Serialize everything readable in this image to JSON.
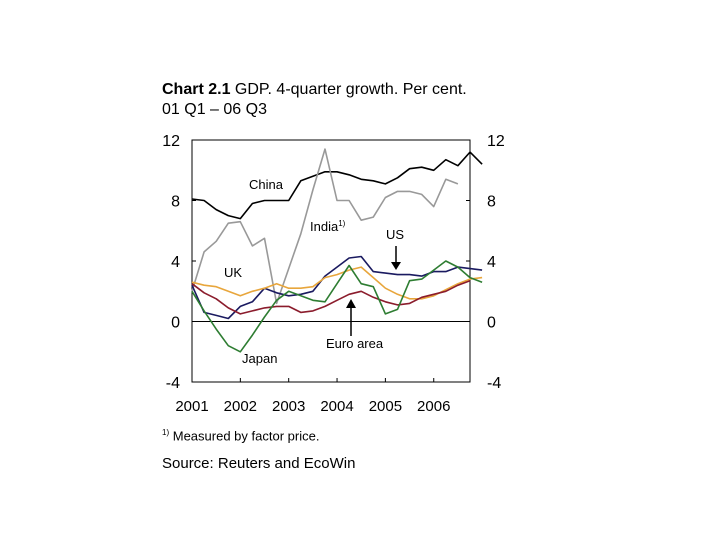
{
  "title": {
    "number": "Chart 2.1",
    "text": "GDP. 4-quarter growth. Per cent.",
    "subtitle": "01 Q1 –  06 Q3"
  },
  "footnote": {
    "marker": "1)",
    "text": "Measured by factor price."
  },
  "source": "Source: Reuters and EcoWin",
  "chart_data": {
    "type": "line",
    "x_start": 2001.0,
    "x_step": 0.25,
    "xlim": [
      2001.0,
      2006.75
    ],
    "ylim": [
      -4,
      12
    ],
    "yticks": [
      -4,
      0,
      4,
      8,
      12
    ],
    "xtick_labels": [
      "2001",
      "2002",
      "2003",
      "2004",
      "2005",
      "2006"
    ],
    "grid": false,
    "zero_line": true,
    "annotations": [
      {
        "series": "China",
        "label": "China"
      },
      {
        "series": "India",
        "label": "India",
        "sup": "1)"
      },
      {
        "series": "US",
        "label": "US",
        "arrow": true
      },
      {
        "series": "UK",
        "label": "UK"
      },
      {
        "series": "Euro area",
        "label": "Euro area",
        "arrow": true
      },
      {
        "series": "Japan",
        "label": "Japan"
      }
    ],
    "series": [
      {
        "name": "China",
        "color": "#000000",
        "x0": 2001.0,
        "values": [
          8.1,
          8.0,
          7.4,
          7.0,
          6.8,
          7.8,
          8.0,
          8.0,
          8.0,
          9.3,
          9.6,
          9.9,
          9.9,
          9.7,
          9.4,
          9.3,
          9.1,
          9.5,
          10.1,
          10.2,
          10.0,
          10.7,
          10.3,
          11.2,
          10.4
        ]
      },
      {
        "name": "India",
        "color": "#999999",
        "x0": 2001.0,
        "values": [
          2.0,
          4.6,
          5.3,
          6.5,
          6.6,
          5.0,
          5.5,
          1.2,
          3.5,
          5.8,
          8.7,
          11.4,
          8.0,
          8.0,
          6.7,
          6.9,
          8.2,
          8.6,
          8.6,
          8.4,
          7.6,
          9.4,
          9.1
        ]
      },
      {
        "name": "US",
        "color": "#1a1a60",
        "x0": 2001.0,
        "values": [
          2.4,
          0.6,
          0.4,
          0.2,
          1.0,
          1.3,
          2.2,
          1.9,
          1.7,
          1.8,
          2.0,
          3.0,
          3.6,
          4.2,
          4.3,
          3.3,
          3.2,
          3.1,
          3.1,
          3.0,
          3.3,
          3.3,
          3.6,
          3.5,
          3.4
        ]
      },
      {
        "name": "UK",
        "color": "#e8a63c",
        "x0": 2001.0,
        "values": [
          2.6,
          2.4,
          2.3,
          2.0,
          1.7,
          2.0,
          2.2,
          2.5,
          2.2,
          2.2,
          2.3,
          2.9,
          3.1,
          3.4,
          3.6,
          2.9,
          2.2,
          1.8,
          1.5,
          1.5,
          1.7,
          2.1,
          2.5,
          2.8,
          2.9
        ]
      },
      {
        "name": "Euro area",
        "color": "#8b1c2c",
        "x0": 2001.0,
        "values": [
          2.5,
          1.9,
          1.5,
          0.9,
          0.5,
          0.7,
          0.9,
          1.0,
          1.0,
          0.6,
          0.7,
          1.0,
          1.4,
          1.8,
          2.0,
          1.6,
          1.3,
          1.1,
          1.2,
          1.6,
          1.8,
          2.0,
          2.4,
          2.7
        ]
      },
      {
        "name": "Japan",
        "color": "#2e7d32",
        "x0": 2001.0,
        "values": [
          2.0,
          0.7,
          -0.5,
          -1.6,
          -2.0,
          -0.9,
          0.3,
          1.4,
          2.0,
          1.7,
          1.4,
          1.3,
          2.5,
          3.7,
          2.5,
          2.3,
          0.5,
          0.8,
          2.7,
          2.8,
          3.4,
          4.0,
          3.6,
          2.9,
          2.6
        ]
      }
    ]
  }
}
